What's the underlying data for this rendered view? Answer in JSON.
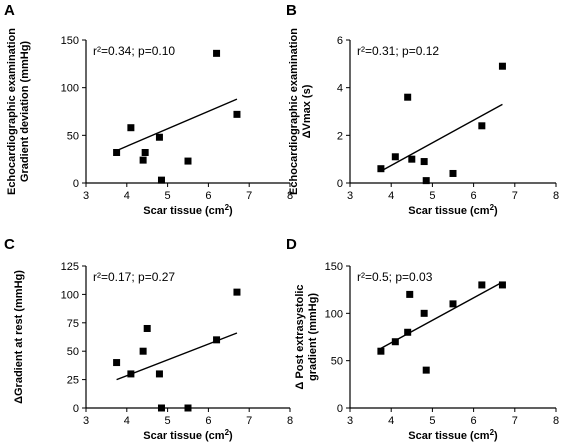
{
  "chart_data": [
    {
      "type": "scatter",
      "panel_label": "A",
      "stat_text": "r²=0.34; p=0.10",
      "ylabel_lines": [
        "Echocardiographic examination",
        "Gradient deviation (mmHg)"
      ],
      "xlabel_main": "Scar tissue (cm",
      "xlabel_sup": "2",
      "xlabel_end": ")",
      "xlim": [
        3,
        8
      ],
      "xticks": [
        3,
        4,
        5,
        6,
        7,
        8
      ],
      "ylim": [
        0,
        150
      ],
      "yticks": [
        0,
        50,
        100,
        150
      ],
      "x": [
        3.75,
        4.1,
        4.4,
        4.45,
        4.8,
        4.85,
        5.5,
        6.2,
        6.7
      ],
      "y": [
        32,
        58,
        24,
        32,
        48,
        3,
        23,
        136,
        72
      ],
      "fit": {
        "x": [
          3.75,
          6.7
        ],
        "y": [
          34,
          88
        ]
      }
    },
    {
      "type": "scatter",
      "panel_label": "B",
      "stat_text": "r²=0.31; p=0.12",
      "ylabel_lines": [
        "Echocardiographic examination",
        "ΔVmax (s)"
      ],
      "xlabel_main": "Scar tissue (cm",
      "xlabel_sup": "2",
      "xlabel_end": ")",
      "xlim": [
        3,
        8
      ],
      "xticks": [
        3,
        4,
        5,
        6,
        7,
        8
      ],
      "ylim": [
        0,
        6
      ],
      "yticks": [
        0,
        2,
        4,
        6
      ],
      "x": [
        3.75,
        4.1,
        4.4,
        4.5,
        4.8,
        4.85,
        5.5,
        6.2,
        6.7
      ],
      "y": [
        0.6,
        1.1,
        3.6,
        1.0,
        0.9,
        0.1,
        0.4,
        2.4,
        4.9
      ],
      "fit": {
        "x": [
          3.75,
          6.7
        ],
        "y": [
          0.5,
          3.3
        ]
      }
    },
    {
      "type": "scatter",
      "panel_label": "C",
      "stat_text": "r²=0.17; p=0.27",
      "ylabel_lines": [
        "ΔGradient at rest (mmHg)"
      ],
      "xlabel_main": "Scar tissue (cm",
      "xlabel_sup": "2",
      "xlabel_end": ")",
      "xlim": [
        3,
        8
      ],
      "xticks": [
        3,
        4,
        5,
        6,
        7,
        8
      ],
      "ylim": [
        0,
        125
      ],
      "yticks": [
        0,
        25,
        50,
        75,
        100,
        125
      ],
      "x": [
        3.75,
        4.1,
        4.4,
        4.5,
        4.8,
        4.85,
        5.5,
        6.2,
        6.7
      ],
      "y": [
        40,
        30,
        50,
        70,
        30,
        0,
        0,
        60,
        102
      ],
      "fit": {
        "x": [
          3.75,
          6.7
        ],
        "y": [
          25,
          66
        ]
      }
    },
    {
      "type": "scatter",
      "panel_label": "D",
      "stat_text": "r²=0.5; p=0.03",
      "ylabel_lines": [
        "Δ Post extrasystolic",
        "gradient (mmHg)"
      ],
      "xlabel_main": "Scar tissue (cm",
      "xlabel_sup": "2",
      "xlabel_end": ")",
      "xlim": [
        3,
        8
      ],
      "xticks": [
        3,
        4,
        5,
        6,
        7,
        8
      ],
      "ylim": [
        0,
        150
      ],
      "yticks": [
        0,
        50,
        100,
        150
      ],
      "x": [
        3.75,
        4.1,
        4.4,
        4.45,
        4.8,
        4.85,
        5.5,
        6.2,
        6.7
      ],
      "y": [
        60,
        70,
        80,
        120,
        100,
        40,
        110,
        130,
        130
      ],
      "fit": {
        "x": [
          3.75,
          6.7
        ],
        "y": [
          63,
          133
        ]
      }
    }
  ]
}
